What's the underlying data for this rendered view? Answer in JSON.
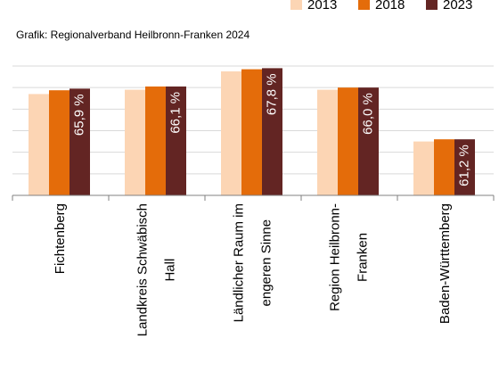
{
  "chart_data": {
    "type": "bar",
    "subtitle": "Grafik: Regionalverband Heilbronn-Franken 2024",
    "categories": [
      "Fichtenberg",
      "Landkreis Schwäbisch\nHall",
      "Ländlicher Raum im\nengeren Sinne",
      "Region Heilbronn-\nFranken",
      "Baden-Württemberg"
    ],
    "series": [
      {
        "name": "2013",
        "color": "#fcd5b4",
        "values": [
          65.4,
          65.8,
          67.5,
          65.8,
          61.0
        ]
      },
      {
        "name": "2018",
        "color": "#e46c0a",
        "values": [
          65.75,
          66.1,
          67.7,
          66.0,
          61.2
        ]
      },
      {
        "name": "2023",
        "color": "#632523",
        "values": [
          65.9,
          66.1,
          67.8,
          66.0,
          61.2
        ],
        "value_labels": [
          "65,9 %",
          "66,1 %",
          "67,8 %",
          "66,0 %",
          "61,2 %"
        ]
      }
    ],
    "ylim": [
      56,
      68
    ],
    "yticks": [
      56,
      58,
      60,
      62,
      64,
      66,
      68
    ],
    "grid": true
  }
}
